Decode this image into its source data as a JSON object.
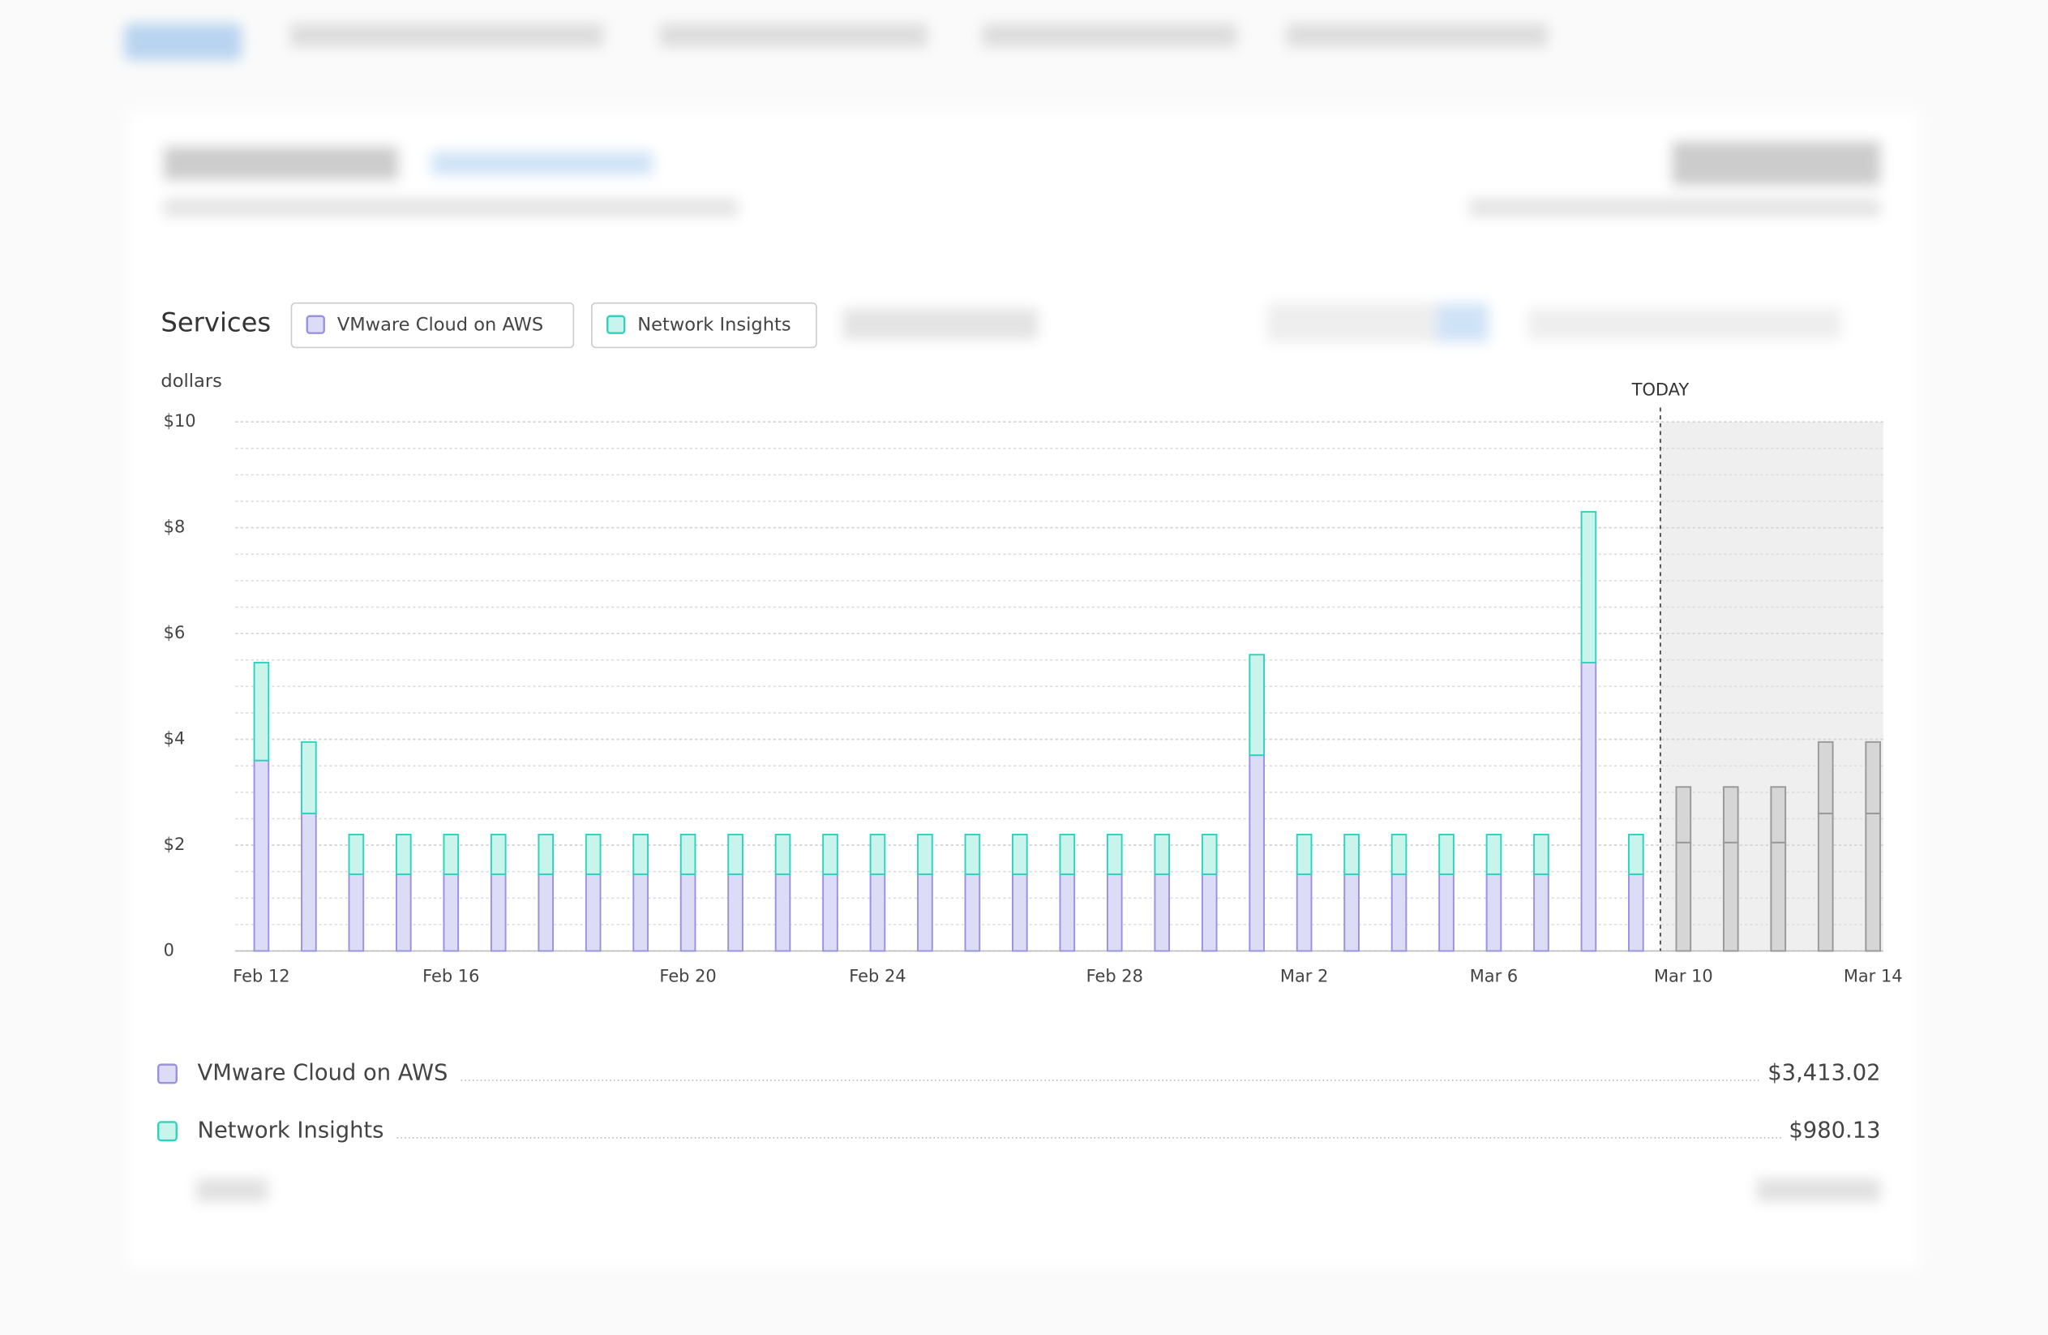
{
  "chart_data": {
    "type": "stacked_bar",
    "header": "Services",
    "y_label": "dollars",
    "categories": [
      "Feb 12",
      null,
      null,
      null,
      "Feb 16",
      null,
      null,
      null,
      null,
      "Feb 20",
      null,
      null,
      null,
      "Feb 24",
      null,
      null,
      null,
      null,
      "Feb 28",
      null,
      null,
      null,
      "Mar 2",
      null,
      null,
      null,
      "Mar 6",
      null,
      null,
      null,
      "Mar 10",
      null,
      null,
      null,
      "Mar 14"
    ],
    "series": [
      {
        "name": "VMware Cloud on AWS",
        "color": "#dcdcf6",
        "stroke": "#9a92de",
        "values": [
          3.6,
          2.6,
          1.45,
          1.45,
          1.45,
          1.45,
          1.45,
          1.45,
          1.45,
          1.45,
          1.45,
          1.45,
          1.45,
          1.45,
          1.45,
          1.45,
          1.45,
          1.45,
          1.45,
          1.45,
          1.45,
          3.7,
          1.45,
          1.45,
          1.45,
          1.45,
          1.45,
          1.45,
          5.45,
          1.45,
          2.05,
          2.05,
          2.05,
          2.6,
          2.6
        ]
      },
      {
        "name": "Network Insights",
        "color": "#c9f4ec",
        "stroke": "#2ed3bd",
        "values": [
          1.85,
          1.35,
          0.75,
          0.75,
          0.75,
          0.75,
          0.75,
          0.75,
          0.75,
          0.75,
          0.75,
          0.75,
          0.75,
          0.75,
          0.75,
          0.75,
          0.75,
          0.75,
          0.75,
          0.75,
          0.75,
          1.9,
          0.75,
          0.75,
          0.75,
          0.75,
          0.75,
          0.75,
          2.85,
          0.75,
          1.05,
          1.05,
          1.05,
          1.35,
          1.35
        ]
      }
    ],
    "forecast": {
      "label": "TODAY",
      "after_category": 29,
      "color": "#d6d6d6",
      "stroke": "#999999",
      "shade": "#efefef"
    },
    "ylim": [
      0,
      10
    ],
    "yticks": [
      0,
      {
        "value": 2,
        "label": "$2"
      },
      {
        "value": 4,
        "label": "$4"
      },
      {
        "value": 6,
        "label": "$6"
      },
      {
        "value": 8,
        "label": "$8"
      },
      {
        "value": 10,
        "label": "$10"
      }
    ],
    "grid": true,
    "grid_step": 0.5,
    "totals": [
      "$3,413.02",
      "$980.13"
    ]
  }
}
